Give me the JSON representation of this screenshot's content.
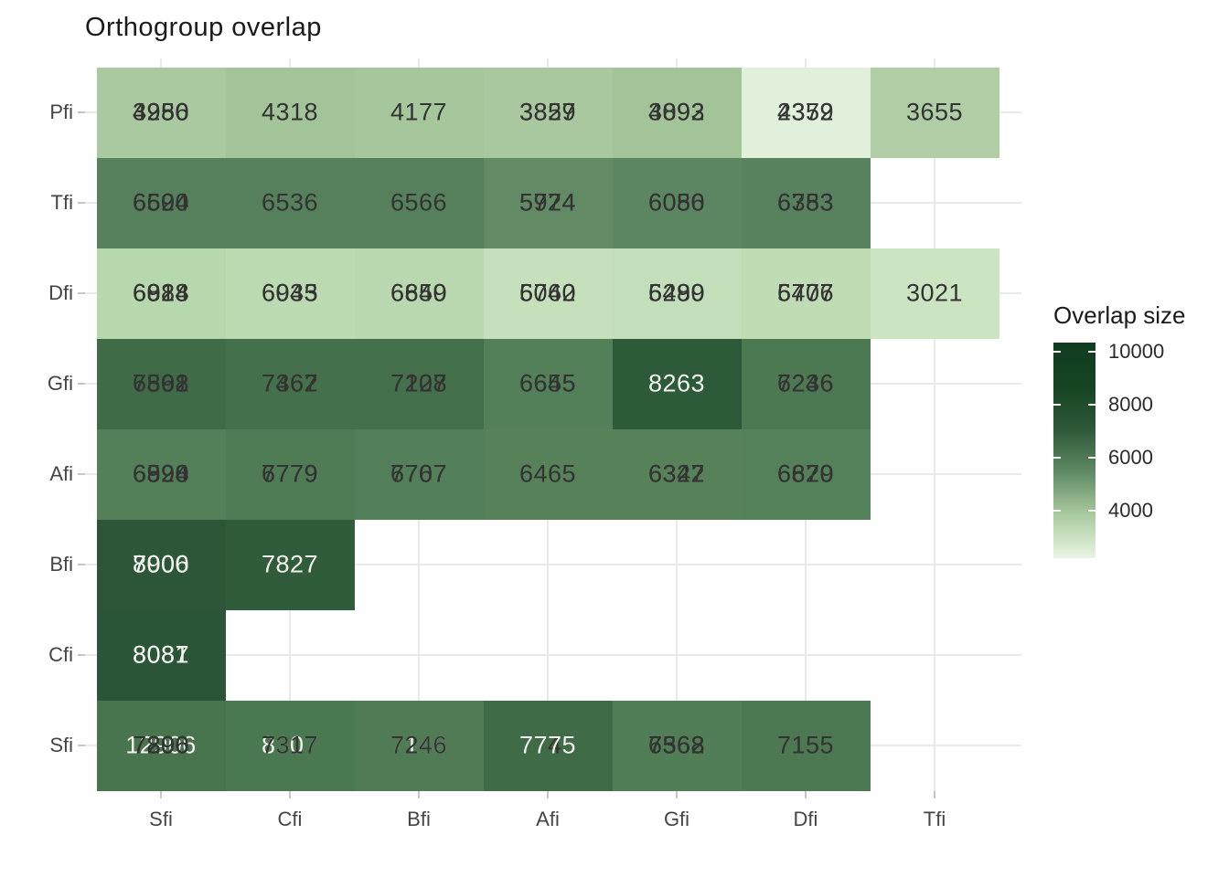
{
  "chart_data": {
    "type": "heatmap",
    "title": "Orthogroup overlap",
    "xlabel": "",
    "ylabel": "",
    "x_categories": [
      "Sfi",
      "Cfi",
      "Bfi",
      "Afi",
      "Gfi",
      "Dfi",
      "Tfi"
    ],
    "y_categories": [
      "Pfi",
      "Tfi",
      "Dfi",
      "Gfi",
      "Afi",
      "Bfi",
      "Cfi",
      "Sfi"
    ],
    "legend": {
      "title": "Overlap size",
      "ticks": [
        {
          "label": "10000",
          "pos_pct": 4.2
        },
        {
          "label": "8000",
          "pos_pct": 28.9
        },
        {
          "label": "6000",
          "pos_pct": 53.2
        },
        {
          "label": "4000",
          "pos_pct": 77.9
        }
      ],
      "gradient_top_to_bottom": [
        "#103c20",
        "#164423",
        "#2e5839",
        "#5f8a63",
        "#aacaa0",
        "#e9f5e3"
      ]
    },
    "colors": {
      "text_dark": "#333333",
      "text_light": "#f2f1ed",
      "gridline": "#e9e9e9",
      "axis_tick": "#c6c6c6"
    },
    "cells": [
      {
        "row": "Pfi",
        "col": "Sfi",
        "r": 0,
        "c": 0,
        "fill": "#abc9a0",
        "labels": [
          {
            "t": "4256",
            "k": "d"
          },
          {
            "t": "3980",
            "k": "d"
          },
          {
            "t": "4950",
            "k": "d"
          }
        ]
      },
      {
        "row": "Pfi",
        "col": "Cfi",
        "r": 0,
        "c": 1,
        "fill": "#a2c498",
        "labels": [
          {
            "t": "4318",
            "k": "d"
          }
        ]
      },
      {
        "row": "Pfi",
        "col": "Bfi",
        "r": 0,
        "c": 2,
        "fill": "#a6c79c",
        "labels": [
          {
            "t": "4177",
            "k": "d"
          }
        ]
      },
      {
        "row": "Pfi",
        "col": "Afi",
        "r": 0,
        "c": 3,
        "fill": "#a9c89f",
        "labels": [
          {
            "t": "3829",
            "k": "d"
          },
          {
            "t": "3857",
            "k": "d"
          }
        ]
      },
      {
        "row": "Pfi",
        "col": "Gfi",
        "r": 0,
        "c": 4,
        "fill": "#a2c498",
        "labels": [
          {
            "t": "4092",
            "k": "d"
          },
          {
            "t": "3893",
            "k": "d"
          }
        ]
      },
      {
        "row": "Pfi",
        "col": "Dfi",
        "r": 0,
        "c": 5,
        "fill": "#e1f0da",
        "labels": [
          {
            "t": "2372",
            "k": "d"
          },
          {
            "t": "4359",
            "k": "d"
          }
        ]
      },
      {
        "row": "Pfi",
        "col": "Tfi",
        "r": 0,
        "c": 6,
        "fill": "#b0cda6",
        "labels": [
          {
            "t": "3655",
            "k": "d"
          }
        ]
      },
      {
        "row": "Tfi",
        "col": "Sfi",
        "r": 1,
        "c": 0,
        "fill": "#57815c",
        "labels": [
          {
            "t": "6604",
            "k": "d"
          },
          {
            "t": "6520",
            "k": "d"
          },
          {
            "t": "6594",
            "k": "d"
          }
        ]
      },
      {
        "row": "Tfi",
        "col": "Cfi",
        "r": 1,
        "c": 1,
        "fill": "#55805b",
        "labels": [
          {
            "t": "6536",
            "k": "d"
          }
        ]
      },
      {
        "row": "Tfi",
        "col": "Bfi",
        "r": 1,
        "c": 2,
        "fill": "#55805b",
        "labels": [
          {
            "t": "6566",
            "k": "d"
          }
        ]
      },
      {
        "row": "Tfi",
        "col": "Afi",
        "r": 1,
        "c": 3,
        "fill": "#618a65",
        "labels": [
          {
            "t": "5974",
            "k": "d"
          },
          {
            "t": "5724",
            "k": "d"
          }
        ]
      },
      {
        "row": "Tfi",
        "col": "Gfi",
        "r": 1,
        "c": 4,
        "fill": "#5c8661",
        "labels": [
          {
            "t": "6086",
            "k": "d"
          },
          {
            "t": "6050",
            "k": "d"
          }
        ]
      },
      {
        "row": "Tfi",
        "col": "Dfi",
        "r": 1,
        "c": 5,
        "fill": "#58825d",
        "labels": [
          {
            "t": "6383",
            "k": "d"
          },
          {
            "t": "6753",
            "k": "d"
          }
        ]
      },
      {
        "row": "Dfi",
        "col": "Sfi",
        "r": 2,
        "c": 0,
        "fill": "#b7d7ac",
        "labels": [
          {
            "t": "6928",
            "k": "d"
          },
          {
            "t": "6814",
            "k": "d"
          },
          {
            "t": "6088",
            "k": "d"
          }
        ]
      },
      {
        "row": "Dfi",
        "col": "Cfi",
        "r": 2,
        "c": 1,
        "fill": "#bbdab1",
        "labels": [
          {
            "t": "6935",
            "k": "d"
          },
          {
            "t": "6043",
            "k": "d"
          }
        ]
      },
      {
        "row": "Dfi",
        "col": "Bfi",
        "r": 2,
        "c": 2,
        "fill": "#b9d8af",
        "labels": [
          {
            "t": "6850",
            "k": "d"
          },
          {
            "t": "6649",
            "k": "d"
          }
        ]
      },
      {
        "row": "Dfi",
        "col": "Afi",
        "r": 2,
        "c": 3,
        "fill": "#c5e0bb",
        "labels": [
          {
            "t": "6062",
            "k": "d"
          },
          {
            "t": "5740",
            "k": "d"
          }
        ]
      },
      {
        "row": "Dfi",
        "col": "Gfi",
        "r": 2,
        "c": 4,
        "fill": "#c3debb",
        "labels": [
          {
            "t": "6299",
            "k": "d"
          },
          {
            "t": "5480",
            "k": "d"
          }
        ]
      },
      {
        "row": "Dfi",
        "col": "Dfi",
        "r": 2,
        "c": 5,
        "fill": "#bfdcb5",
        "labels": [
          {
            "t": "6406",
            "k": "d"
          },
          {
            "t": "5777",
            "k": "d"
          }
        ]
      },
      {
        "row": "Dfi",
        "col": "Tfi",
        "r": 2,
        "c": 6,
        "fill": "#cbe4c2",
        "labels": [
          {
            "t": "3021",
            "k": "d"
          }
        ]
      },
      {
        "row": "Gfi",
        "col": "Sfi",
        "r": 3,
        "c": 0,
        "fill": "#3f6b47",
        "labels": [
          {
            "t": "7362",
            "k": "d"
          },
          {
            "t": "6801",
            "k": "d"
          },
          {
            "t": "7598",
            "k": "d"
          }
        ]
      },
      {
        "row": "Gfi",
        "col": "Cfi",
        "r": 3,
        "c": 1,
        "fill": "#44704b",
        "labels": [
          {
            "t": "7367",
            "k": "d"
          },
          {
            "t": "7462",
            "k": "d"
          }
        ]
      },
      {
        "row": "Gfi",
        "col": "Bfi",
        "r": 3,
        "c": 2,
        "fill": "#44704b",
        "labels": [
          {
            "t": "7208",
            "k": "d"
          },
          {
            "t": "7127",
            "k": "d"
          }
        ]
      },
      {
        "row": "Gfi",
        "col": "Afi",
        "r": 3,
        "c": 3,
        "fill": "#538059",
        "labels": [
          {
            "t": "6655",
            "k": "d"
          },
          {
            "t": "6645",
            "k": "d"
          }
        ]
      },
      {
        "row": "Gfi",
        "col": "Gfi",
        "r": 3,
        "c": 4,
        "fill": "#2d5a39",
        "labels": [
          {
            "t": "8263",
            "k": "l"
          }
        ]
      },
      {
        "row": "Gfi",
        "col": "Dfi",
        "r": 3,
        "c": 5,
        "fill": "#4c7852",
        "labels": [
          {
            "t": "7236",
            "k": "d"
          },
          {
            "t": "6246",
            "k": "d"
          }
        ]
      },
      {
        "row": "Afi",
        "col": "Sfi",
        "r": 4,
        "c": 0,
        "fill": "#537f59",
        "labels": [
          {
            "t": "6598",
            "k": "d"
          },
          {
            "t": "6824",
            "k": "d"
          },
          {
            "t": "6990",
            "k": "d"
          }
        ]
      },
      {
        "row": "Afi",
        "col": "Cfi",
        "r": 4,
        "c": 1,
        "fill": "#4f7c55",
        "labels": [
          {
            "t": "6779",
            "k": "d"
          },
          {
            "t": "7779",
            "k": "d"
          }
        ]
      },
      {
        "row": "Afi",
        "col": "Bfi",
        "r": 4,
        "c": 2,
        "fill": "#53805a",
        "labels": [
          {
            "t": "6707",
            "k": "d"
          },
          {
            "t": "7767",
            "k": "d"
          }
        ]
      },
      {
        "row": "Afi",
        "col": "Afi",
        "r": 4,
        "c": 3,
        "fill": "#568159",
        "labels": [
          {
            "t": "6465",
            "k": "d"
          }
        ]
      },
      {
        "row": "Afi",
        "col": "Gfi",
        "r": 4,
        "c": 4,
        "fill": "#578259",
        "labels": [
          {
            "t": "6327",
            "k": "d"
          },
          {
            "t": "6342",
            "k": "d"
          }
        ]
      },
      {
        "row": "Afi",
        "col": "Dfi",
        "r": 4,
        "c": 5,
        "fill": "#54805a",
        "labels": [
          {
            "t": "6629",
            "k": "d"
          },
          {
            "t": "6870",
            "k": "d"
          }
        ]
      },
      {
        "row": "Bfi",
        "col": "Sfi",
        "r": 5,
        "c": 0,
        "fill": "#2c5637",
        "labels": [
          {
            "t": "8000",
            "k": "l"
          },
          {
            "t": "7906",
            "k": "l"
          }
        ]
      },
      {
        "row": "Bfi",
        "col": "Cfi",
        "r": 5,
        "c": 1,
        "fill": "#315c3c",
        "labels": [
          {
            "t": "7827",
            "k": "l"
          }
        ]
      },
      {
        "row": "Cfi",
        "col": "Sfi",
        "r": 6,
        "c": 0,
        "fill": "#2b5537",
        "labels": [
          {
            "t": "8087",
            "k": "l"
          },
          {
            "t": "8081",
            "k": "l"
          }
        ]
      },
      {
        "row": "Sfi",
        "col": "Sfi",
        "r": 7,
        "c": 0,
        "fill": "#48744e",
        "labels": [
          {
            "t": "12906",
            "k": "l"
          },
          {
            "t": "7290",
            "k": "d"
          },
          {
            "t": "7896",
            "k": "d"
          },
          {
            "t": "7306",
            "k": "d"
          }
        ]
      },
      {
        "row": "Sfi",
        "col": "Cfi",
        "r": 7,
        "c": 1,
        "fill": "#4a7850",
        "labels": [
          {
            "t": "8307",
            "k": "l"
          },
          {
            "t": "7317",
            "k": "d"
          }
        ]
      },
      {
        "row": "Sfi",
        "col": "Bfi",
        "r": 7,
        "c": 2,
        "fill": "#507b55",
        "labels": [
          {
            "t": "7146",
            "k": "l"
          },
          {
            "t": "7246",
            "k": "d"
          }
        ]
      },
      {
        "row": "Sfi",
        "col": "Afi",
        "r": 7,
        "c": 3,
        "fill": "#3f6b47",
        "labels": [
          {
            "t": "7745",
            "k": "d"
          },
          {
            "t": "7775",
            "k": "l"
          }
        ]
      },
      {
        "row": "Sfi",
        "col": "Gfi",
        "r": 7,
        "c": 4,
        "fill": "#527e57",
        "labels": [
          {
            "t": "7368",
            "k": "d"
          },
          {
            "t": "6562",
            "k": "d"
          },
          {
            "t": "7568",
            "k": "d"
          }
        ]
      },
      {
        "row": "Sfi",
        "col": "Dfi",
        "r": 7,
        "c": 5,
        "fill": "#4d7952",
        "labels": [
          {
            "t": "7155",
            "k": "d"
          }
        ]
      }
    ]
  }
}
